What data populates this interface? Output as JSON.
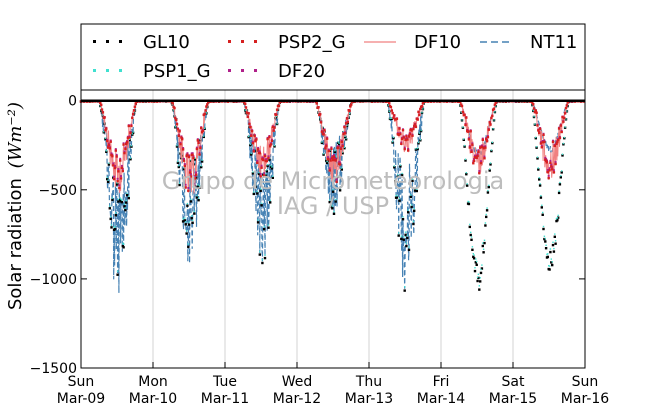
{
  "chart_data": {
    "type": "scatter",
    "ylabel": "Solar radiation",
    "ylabel_unit": "(Wm⁻²)",
    "ylim": [
      -1500,
      60
    ],
    "yticks": [
      0,
      -500,
      -1000,
      -1500
    ],
    "ytick_labels": [
      "0",
      "−500",
      "−1000",
      "−1500"
    ],
    "xlim": [
      0,
      7
    ],
    "xticks": [
      {
        "day": 0,
        "line1": "Sun",
        "line2": "Mar-09"
      },
      {
        "day": 1,
        "line1": "Mon",
        "line2": "Mar-10"
      },
      {
        "day": 2,
        "line1": "Tue",
        "line2": "Mar-11"
      },
      {
        "day": 3,
        "line1": "Wed",
        "line2": "Mar-12"
      },
      {
        "day": 4,
        "line1": "Thu",
        "line2": "Mar-13"
      },
      {
        "day": 5,
        "line1": "Fri",
        "line2": "Mar-14"
      },
      {
        "day": 6,
        "line1": "Sat",
        "line2": "Mar-15"
      },
      {
        "day": 7,
        "line1": "Sun",
        "line2": "Mar-16"
      }
    ],
    "grid": "vertical",
    "legend_placement": "top",
    "watermark": [
      "Grupo de Micrometeorologia",
      "IAG / USP"
    ],
    "series": [
      {
        "name": "GL10",
        "color": "#000000",
        "style": "dotted"
      },
      {
        "name": "PSP1_G",
        "color": "#40e0d0",
        "style": "dotted"
      },
      {
        "name": "PSP2_G",
        "color": "#d62020",
        "style": "dotted"
      },
      {
        "name": "DF20",
        "color": "#b0208a",
        "style": "dotted"
      },
      {
        "name": "DF10",
        "color": "#f08080",
        "style": "solid"
      },
      {
        "name": "NT11",
        "color": "#4682b4",
        "style": "dashed"
      }
    ],
    "daily_peaks": [
      {
        "day": 0,
        "global": -1150,
        "diffuse": -520
      },
      {
        "day": 1,
        "global": -960,
        "diffuse": -560
      },
      {
        "day": 2,
        "global": -940,
        "diffuse": -450
      },
      {
        "day": 3,
        "global": -650,
        "diffuse": -480
      },
      {
        "day": 4,
        "global": -1080,
        "diffuse": -300
      },
      {
        "day": 5,
        "global": -1080,
        "diffuse": -420
      },
      {
        "day": 6,
        "global": -990,
        "diffuse": -440
      }
    ]
  }
}
